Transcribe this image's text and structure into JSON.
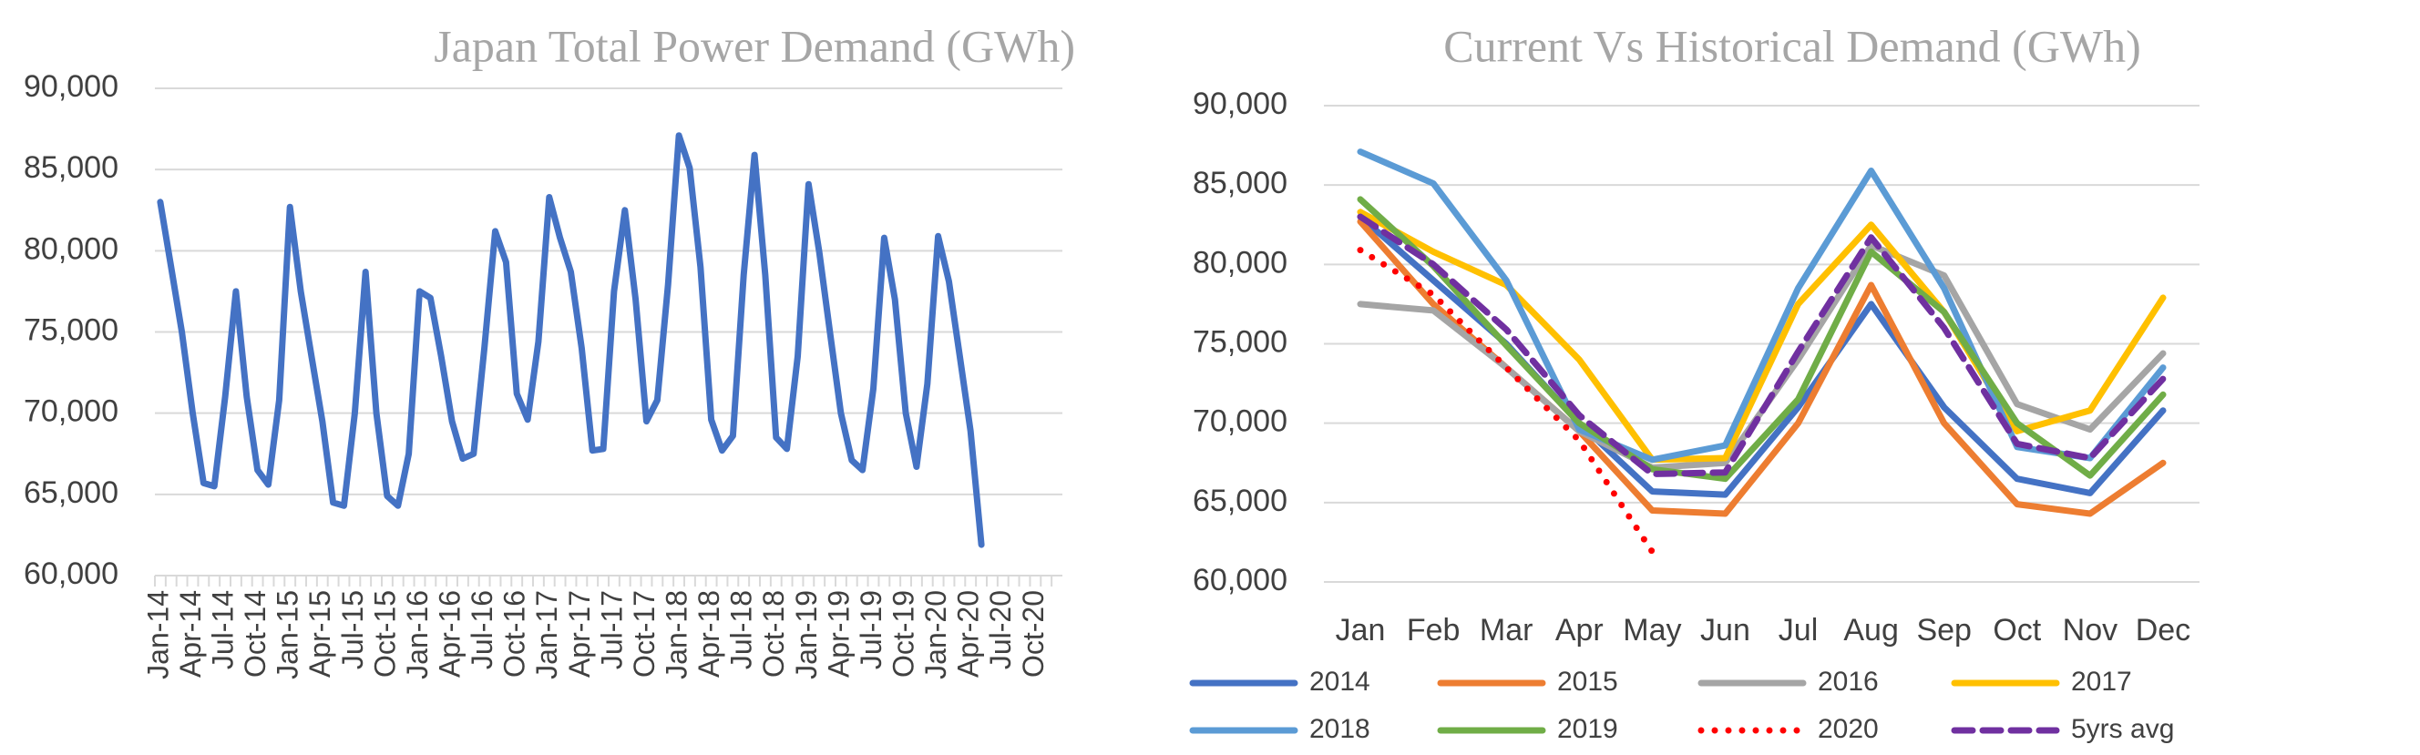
{
  "chart_data": [
    {
      "type": "line",
      "title": "Japan Total Power Demand (GWh)",
      "categories": [
        "Jan-14",
        null,
        null,
        "Apr-14",
        null,
        null,
        "Jul-14",
        null,
        null,
        "Oct-14",
        null,
        null,
        "Jan-15",
        null,
        null,
        "Apr-15",
        null,
        null,
        "Jul-15",
        null,
        null,
        "Oct-15",
        null,
        null,
        "Jan-16",
        null,
        null,
        "Apr-16",
        null,
        null,
        "Jul-16",
        null,
        null,
        "Oct-16",
        null,
        null,
        "Jan-17",
        null,
        null,
        "Apr-17",
        null,
        null,
        "Jul-17",
        null,
        null,
        "Oct-17",
        null,
        null,
        "Jan-18",
        null,
        null,
        "Apr-18",
        null,
        null,
        "Jul-18",
        null,
        null,
        "Oct-18",
        null,
        null,
        "Jan-19",
        null,
        null,
        "Apr-19",
        null,
        null,
        "Jul-19",
        null,
        null,
        "Oct-19",
        null,
        null,
        "Jan-20",
        null,
        null,
        "Apr-20",
        null,
        null,
        "Jul-20",
        null,
        null,
        "Oct-20",
        null,
        null
      ],
      "values": [
        83000,
        79000,
        75000,
        70000,
        65700,
        65500,
        71000,
        77500,
        71000,
        66500,
        65600,
        70800,
        82700,
        77500,
        73500,
        69500,
        64500,
        64300,
        70000,
        78700,
        70000,
        64900,
        64300,
        67500,
        77500,
        77100,
        73500,
        69500,
        67200,
        67500,
        74000,
        81200,
        79300,
        71200,
        69600,
        74400,
        83300,
        80800,
        78700,
        74000,
        67700,
        67800,
        77500,
        82500,
        77000,
        69500,
        70800,
        77900,
        87100,
        85100,
        79000,
        69600,
        67700,
        68600,
        78500,
        85900,
        78500,
        68500,
        67800,
        73500,
        84100,
        79900,
        74900,
        70000,
        67100,
        66500,
        71500,
        80800,
        77000,
        70000,
        66700,
        71800,
        80900,
        78100,
        73500,
        68900,
        61900,
        null,
        null,
        null,
        null,
        null,
        null,
        null
      ],
      "color": "#4472c4",
      "ylim": [
        60000,
        90000
      ],
      "yticks": [
        {
          "value": 60000,
          "label": "60,000"
        },
        {
          "value": 65000,
          "label": "65,000"
        },
        {
          "value": 70000,
          "label": "70,000"
        },
        {
          "value": 75000,
          "label": "75,000"
        },
        {
          "value": 80000,
          "label": "80,000"
        },
        {
          "value": 85000,
          "label": "85,000"
        },
        {
          "value": 90000,
          "label": "90,000"
        }
      ],
      "grid": true
    },
    {
      "type": "line",
      "title": "Current Vs Historical Demand (GWh)",
      "categories": [
        "Jan",
        "Feb",
        "Mar",
        "Apr",
        "May",
        "Jun",
        "Jul",
        "Aug",
        "Sep",
        "Oct",
        "Nov",
        "Dec"
      ],
      "series": [
        {
          "name": "2014",
          "color": "#4472c4",
          "style": "solid",
          "values": [
            83000,
            79000,
            75000,
            70000,
            65700,
            65500,
            71000,
            77500,
            71000,
            66500,
            65600,
            70800
          ]
        },
        {
          "name": "2015",
          "color": "#ed7d31",
          "style": "solid",
          "values": [
            82700,
            77500,
            73500,
            69500,
            64500,
            64300,
            70000,
            78700,
            70000,
            64900,
            64300,
            67500
          ]
        },
        {
          "name": "2016",
          "color": "#a5a5a5",
          "style": "solid",
          "values": [
            77500,
            77100,
            73500,
            69500,
            67200,
            67500,
            74000,
            81200,
            79300,
            71200,
            69600,
            74400
          ]
        },
        {
          "name": "2017",
          "color": "#ffc000",
          "style": "solid",
          "values": [
            83300,
            80800,
            78700,
            74000,
            67700,
            67800,
            77500,
            82500,
            77000,
            69500,
            70800,
            77900
          ]
        },
        {
          "name": "2018",
          "color": "#5b9bd5",
          "style": "solid",
          "values": [
            87100,
            85100,
            79000,
            69600,
            67700,
            68600,
            78500,
            85900,
            78500,
            68500,
            67800,
            73500
          ]
        },
        {
          "name": "2019",
          "color": "#70ad47",
          "style": "solid",
          "values": [
            84100,
            79900,
            74900,
            70000,
            67100,
            66500,
            71500,
            80800,
            77000,
            70000,
            66700,
            71800
          ]
        },
        {
          "name": "2020",
          "color": "#ff0000",
          "style": "dotted",
          "values": [
            80900,
            78100,
            73500,
            68900,
            61900,
            null,
            null,
            null,
            null,
            null,
            null,
            null
          ]
        },
        {
          "name": "5yrs avg",
          "color": "#7030a0",
          "style": "dashed",
          "values": [
            83000,
            80000,
            75900,
            70500,
            66800,
            66900,
            74500,
            81700,
            76000,
            68700,
            67800,
            72800
          ]
        }
      ],
      "ylim": [
        60000,
        90000
      ],
      "yticks": [
        {
          "value": 60000,
          "label": "60,000"
        },
        {
          "value": 65000,
          "label": "65,000"
        },
        {
          "value": 70000,
          "label": "70,000"
        },
        {
          "value": 75000,
          "label": "75,000"
        },
        {
          "value": 80000,
          "label": "80,000"
        },
        {
          "value": 85000,
          "label": "85,000"
        },
        {
          "value": 90000,
          "label": "90,000"
        }
      ],
      "grid": true,
      "legend": "bottom"
    }
  ]
}
